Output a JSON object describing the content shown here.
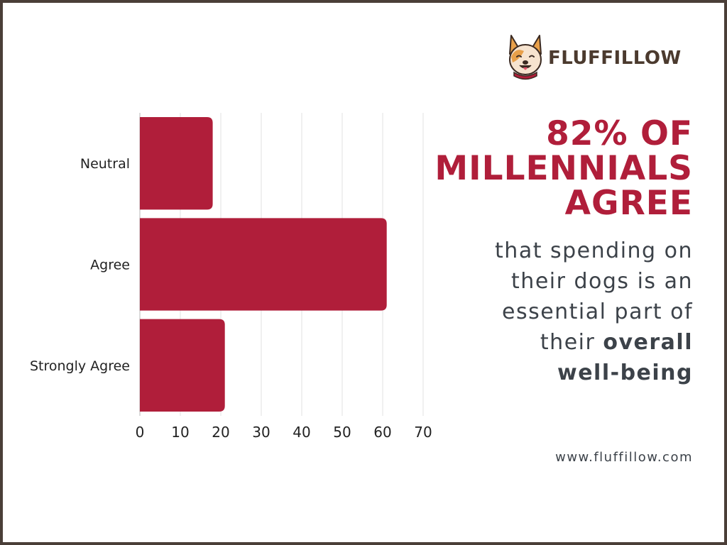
{
  "brand": {
    "name": "FLUFFILLOW"
  },
  "headline": {
    "line1": "82% OF",
    "line2": "MILLENNIALS",
    "line3": "AGREE"
  },
  "body": {
    "line1": "that spending on",
    "line2": "their dogs is an",
    "line3": "essential part of",
    "line4_plain": "their ",
    "line4_bold": "overall",
    "line5_bold": "well-being"
  },
  "website": "www.fluffillow.com",
  "colors": {
    "bar": "#b01e3a",
    "headline": "#b01e3a",
    "text": "#3c4249",
    "border": "#4a3e38",
    "brand": "#4b3a2e"
  },
  "chart_data": {
    "type": "bar",
    "orientation": "horizontal",
    "categories": [
      "Neutral",
      "Agree",
      "Strongly Agree"
    ],
    "values": [
      18,
      61,
      21
    ],
    "xlim": [
      0,
      70
    ],
    "xticks": [
      0,
      10,
      20,
      30,
      40,
      50,
      60,
      70
    ],
    "grid": true,
    "title": "",
    "xlabel": "",
    "ylabel": ""
  }
}
